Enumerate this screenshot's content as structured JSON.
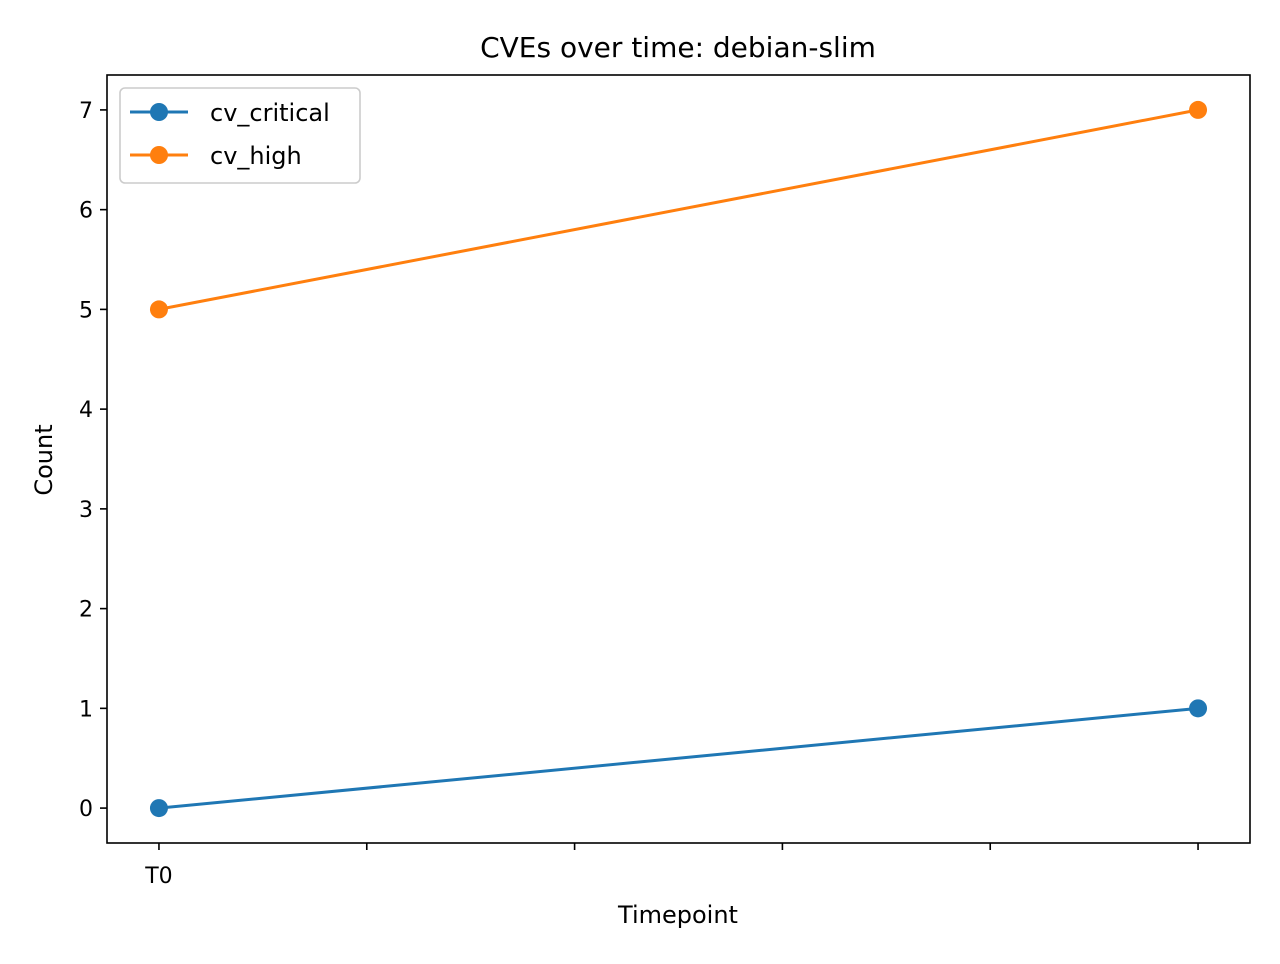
{
  "chart_data": {
    "type": "line",
    "title": "CVEs over time: debian-slim",
    "xlabel": "Timepoint",
    "ylabel": "Count",
    "x_tick_positions": [
      0,
      1,
      2,
      3,
      4,
      5
    ],
    "x_tick_labels": [
      "T0",
      "",
      "",
      "",
      "",
      ""
    ],
    "xlim": [
      -0.25,
      5.25
    ],
    "ylim": [
      -0.35,
      7.35
    ],
    "yticks": [
      0,
      1,
      2,
      3,
      4,
      5,
      6,
      7
    ],
    "grid": false,
    "legend_position": "upper-left",
    "series": [
      {
        "name": "cv_critical",
        "color": "#1f77b4",
        "x": [
          0,
          5
        ],
        "values": [
          0,
          1
        ]
      },
      {
        "name": "cv_high",
        "color": "#ff7f0e",
        "x": [
          0,
          5
        ],
        "values": [
          5,
          7
        ]
      }
    ]
  }
}
